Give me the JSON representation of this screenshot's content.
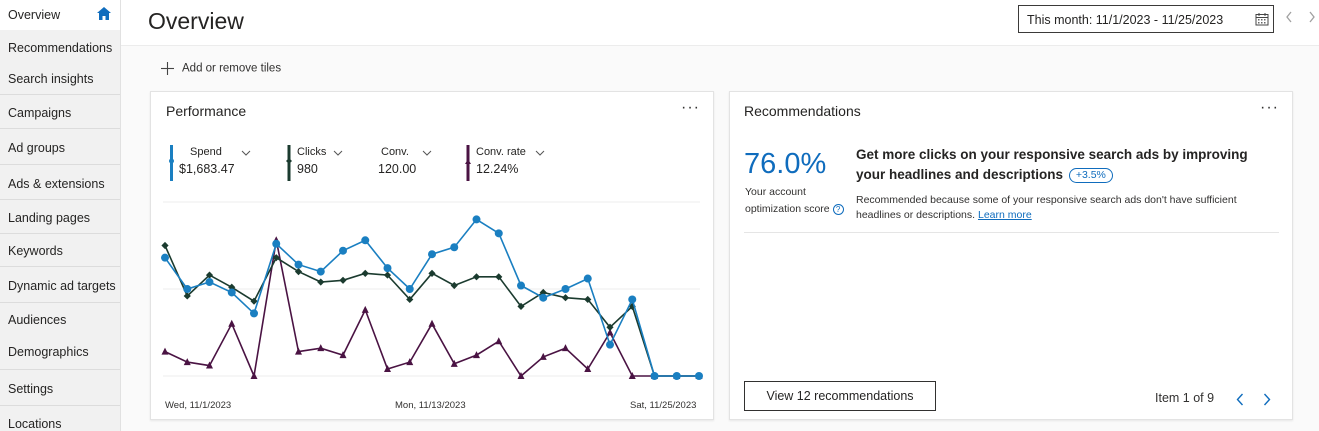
{
  "sidebar": {
    "items": [
      {
        "label": "Overview"
      },
      {
        "label": "Recommendations"
      },
      {
        "label": "Search insights"
      },
      {
        "label": "Campaigns"
      },
      {
        "label": "Ad groups"
      },
      {
        "label": "Ads & extensions"
      },
      {
        "label": "Landing pages"
      },
      {
        "label": "Keywords"
      },
      {
        "label": "Dynamic ad targets"
      },
      {
        "label": "Audiences"
      },
      {
        "label": "Demographics"
      },
      {
        "label": "Settings"
      },
      {
        "label": "Locations"
      }
    ],
    "home_icon": "home-icon"
  },
  "header": {
    "title": "Overview",
    "date_range": "This month: 11/1/2023 - 11/25/2023"
  },
  "toolbar": {
    "add_tiles_label": "Add or remove tiles"
  },
  "performance": {
    "title": "Performance",
    "metrics": [
      {
        "label": "Spend",
        "value": "$1,683.47",
        "color": "#1a7fc1"
      },
      {
        "label": "Clicks",
        "value": "980",
        "color": "#1b3b2f"
      },
      {
        "label": "Conv.",
        "value": "120.00",
        "color": "#ffffff"
      },
      {
        "label": "Conv. rate",
        "value": "12.24%",
        "color": "#4a1343"
      }
    ],
    "x_labels": [
      "Wed, 11/1/2023",
      "Mon, 11/13/2023",
      "Sat, 11/25/2023"
    ]
  },
  "chart_data": {
    "type": "line",
    "x": [
      "11/1",
      "11/2",
      "11/3",
      "11/4",
      "11/5",
      "11/6",
      "11/7",
      "11/8",
      "11/9",
      "11/10",
      "11/11",
      "11/12",
      "11/13",
      "11/14",
      "11/15",
      "11/16",
      "11/17",
      "11/18",
      "11/19",
      "11/20",
      "11/21",
      "11/22",
      "11/23",
      "11/24",
      "11/25"
    ],
    "series": [
      {
        "name": "Spend",
        "color": "#1a7fc1",
        "marker": "circle",
        "values": [
          68,
          50,
          54,
          48,
          36,
          76,
          64,
          60,
          72,
          78,
          62,
          50,
          70,
          74,
          90,
          82,
          52,
          45,
          50,
          56,
          18,
          44,
          0,
          0,
          0
        ]
      },
      {
        "name": "Clicks",
        "color": "#1b3b2f",
        "marker": "diamond",
        "values": [
          75,
          46,
          58,
          51,
          43,
          68,
          60,
          54,
          55,
          59,
          58,
          44,
          59,
          52,
          57,
          57,
          40,
          48,
          45,
          44,
          28,
          40,
          0,
          0,
          0
        ]
      },
      {
        "name": "Conv. rate",
        "color": "#4a1343",
        "marker": "triangle",
        "values": [
          14,
          8,
          6,
          30,
          0,
          78,
          14,
          16,
          12,
          38,
          4,
          8,
          30,
          7,
          12,
          20,
          0,
          11,
          16,
          4,
          25,
          0,
          0,
          0,
          0
        ]
      }
    ],
    "ylim": [
      0,
      100
    ],
    "grid": true
  },
  "recommendations": {
    "title": "Recommendations",
    "score": "76.0%",
    "score_label_1": "Your account",
    "score_label_2": "optimization score",
    "headline": "Get more clicks on your responsive search ads by improving your headlines and descriptions",
    "uplift": "+3.5%",
    "description": "Recommended because some of your responsive search ads don't have sufficient headlines or descriptions.",
    "learn_more": "Learn more",
    "view_button": "View 12 recommendations",
    "pager": "Item 1 of 9"
  },
  "colors": {
    "accent": "#0f6cbd"
  }
}
